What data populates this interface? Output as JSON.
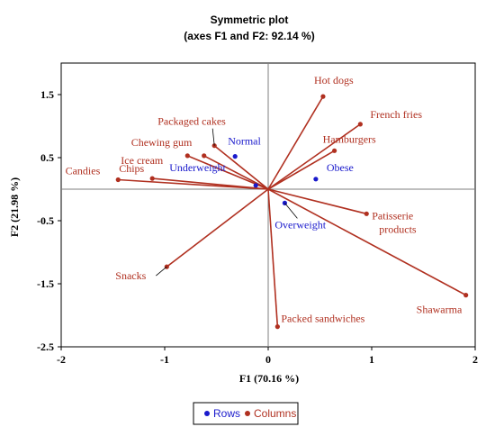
{
  "colors": {
    "rows": "#1a1acc",
    "columns": "#b03020",
    "grid": "#7f7f7f",
    "frame": "#000000"
  },
  "chart_data": {
    "type": "scatter",
    "title": "Symmetric plot",
    "subtitle": "(axes F1 and F2: 92.14 %)",
    "xlabel": "F1 (70.16 %)",
    "ylabel": "F2 (21.98 %)",
    "xlim": [
      -2,
      2
    ],
    "ylim": [
      -2.5,
      2
    ],
    "xticks": [
      -2,
      -1,
      0,
      1,
      2
    ],
    "yticks": [
      -2.5,
      -1.5,
      -0.5,
      0.5,
      1.5
    ],
    "xtick_labels": [
      "-2",
      "-1",
      "0",
      "1",
      "2"
    ],
    "ytick_labels": [
      "-2.5",
      "-1.5",
      "-0.5",
      "0.5",
      "1.5"
    ],
    "legend": {
      "placement": "bottom-center",
      "entries": [
        "Rows",
        "Columns"
      ]
    },
    "series": [
      {
        "name": "Rows",
        "points": [
          {
            "label": "Normal",
            "x": -0.32,
            "y": 0.52
          },
          {
            "label": "Underweight",
            "x": -0.12,
            "y": 0.06
          },
          {
            "label": "Obese",
            "x": 0.46,
            "y": 0.16
          },
          {
            "label": "Overweight",
            "x": 0.16,
            "y": -0.22
          }
        ]
      },
      {
        "name": "Columns",
        "points": [
          {
            "label": "Hot dogs",
            "x": 0.53,
            "y": 1.47
          },
          {
            "label": "French fries",
            "x": 0.89,
            "y": 1.03
          },
          {
            "label": "Hamburgers",
            "x": 0.64,
            "y": 0.61
          },
          {
            "label": "Packaged cakes",
            "x": -0.52,
            "y": 0.69
          },
          {
            "label": "Chewing gum",
            "x": -0.62,
            "y": 0.53
          },
          {
            "label": "Ice cream",
            "x": -0.78,
            "y": 0.53
          },
          {
            "label": "Chips",
            "x": -1.12,
            "y": 0.17
          },
          {
            "label": "Candies",
            "x": -1.45,
            "y": 0.15
          },
          {
            "label": "Patisserie products",
            "x": 0.95,
            "y": -0.39
          },
          {
            "label": "Snacks",
            "x": -0.98,
            "y": -1.23
          },
          {
            "label": "Packed sandwiches",
            "x": 0.09,
            "y": -2.18
          },
          {
            "label": "Shawarma",
            "x": 1.91,
            "y": -1.68
          }
        ]
      }
    ]
  }
}
